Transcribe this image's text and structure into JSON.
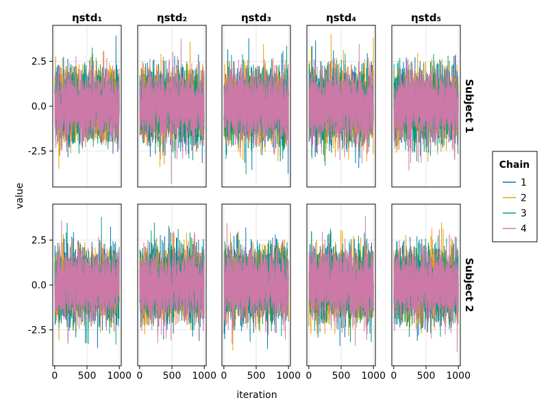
{
  "chart_data": {
    "type": "line",
    "title": "",
    "xlabel": "iteration",
    "ylabel": "value",
    "columns": [
      "ηstd₁",
      "ηstd₂",
      "ηstd₃",
      "ηstd₄",
      "ηstd₅"
    ],
    "rows": [
      "Subject 1",
      "Subject 2"
    ],
    "xlim": [
      -30,
      1030
    ],
    "ylim": [
      -4.5,
      4.5
    ],
    "xticks": [
      0,
      500,
      1000
    ],
    "xtick_labels": [
      "0",
      "500",
      "1000"
    ],
    "yticks": [
      -2.5,
      0,
      2.5
    ],
    "ytick_labels": [
      "-2.5",
      "0.0",
      "2.5"
    ],
    "grid": true,
    "iterations": 1000,
    "series": [
      {
        "name": "1",
        "color": "#0072b2",
        "mean": 0.0,
        "sd": 0.95
      },
      {
        "name": "2",
        "color": "#e69f00",
        "mean": 0.0,
        "sd": 0.95
      },
      {
        "name": "3",
        "color": "#009e73",
        "mean": 0.0,
        "sd": 0.95
      },
      {
        "name": "4",
        "color": "#cc79a7",
        "mean": 0.0,
        "sd": 0.95
      }
    ],
    "legend": {
      "title": "Chain",
      "position": "right",
      "entries": [
        "1",
        "2",
        "3",
        "4"
      ]
    }
  }
}
